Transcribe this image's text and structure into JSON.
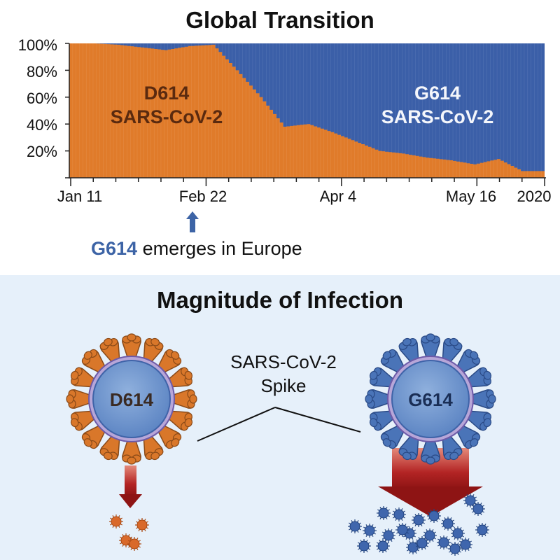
{
  "top": {
    "title": "Global Transition",
    "annotation": {
      "highlight": "G614",
      "text": " emerges in Europe",
      "arrow_icon": "up-arrow-icon"
    }
  },
  "bottom": {
    "title": "Magnitude of Infection",
    "spike_label_line1": "SARS-CoV-2",
    "spike_label_line2": "Spike",
    "left_virus": {
      "label": "D614",
      "color": "#d9772a",
      "infection": "low"
    },
    "right_virus": {
      "label": "G614",
      "color": "#3d64a6",
      "infection": "high"
    }
  },
  "colors": {
    "d614": "#e07b2a",
    "g614": "#3b5fa8",
    "panel_bg": "#e6f0fa",
    "arrow_red": "#a31c1c"
  },
  "chart_data": {
    "type": "area",
    "stacked": true,
    "normalized": true,
    "title": "Global Transition",
    "xlabel": "",
    "ylabel": "",
    "ylim": [
      0,
      100
    ],
    "yticks": [
      "20%",
      "40%",
      "60%",
      "80%",
      "100%"
    ],
    "xticks": [
      "Jan 11",
      "Feb 22",
      "Apr 4",
      "May 16",
      "2020"
    ],
    "grid": false,
    "legend": "in-plot labels",
    "annotations": [
      {
        "text": "D614 SARS-CoV-2",
        "series": "D614"
      },
      {
        "text": "G614 SARS-CoV-2",
        "series": "G614"
      },
      {
        "text": "G614 emerges in Europe",
        "at": "Feb 22"
      }
    ],
    "x": [
      "Jan 11",
      "Jan 18",
      "Jan 25",
      "Feb 1",
      "Feb 8",
      "Feb 15",
      "Feb 22",
      "Feb 29",
      "Mar 7",
      "Mar 14",
      "Mar 21",
      "Mar 28",
      "Apr 4",
      "Apr 11",
      "Apr 18",
      "Apr 25",
      "May 2",
      "May 9",
      "May 16",
      "May 23",
      "May 30"
    ],
    "series": [
      {
        "name": "D614",
        "color": "#e07b2a",
        "values": [
          100,
          100,
          99,
          97,
          95,
          98,
          99,
          80,
          60,
          38,
          40,
          34,
          27,
          20,
          18,
          15,
          13,
          10,
          14,
          5,
          5
        ]
      },
      {
        "name": "G614",
        "color": "#3b5fa8",
        "values": [
          0,
          0,
          1,
          3,
          5,
          2,
          1,
          20,
          40,
          62,
          60,
          66,
          73,
          80,
          82,
          85,
          87,
          90,
          86,
          95,
          95
        ]
      }
    ]
  }
}
